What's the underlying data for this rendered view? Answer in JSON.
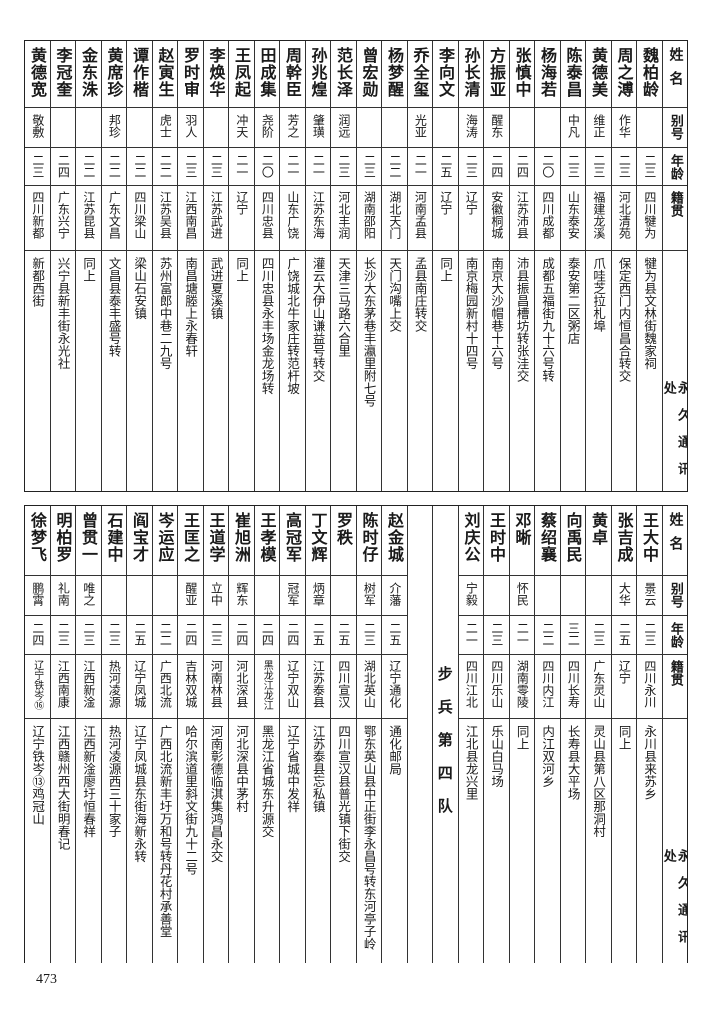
{
  "headers": {
    "name": "姓名",
    "alias": "别号",
    "age": "年龄",
    "origin": "籍贯",
    "address": "永久通讯处"
  },
  "top_table": [
    {
      "name": "魏柏龄",
      "alias": "",
      "age": "二三",
      "origin": "四川犍为",
      "address": "犍为县文林街魏家祠"
    },
    {
      "name": "周之溥",
      "alias": "作华",
      "age": "二三",
      "origin": "河北清苑",
      "address": "保定西门内恒昌合转交"
    },
    {
      "name": "黄德美",
      "alias": "维正",
      "age": "二三",
      "origin": "福建龙溪",
      "address": "爪哇芝拉札埠"
    },
    {
      "name": "陈泰昌",
      "alias": "中凡",
      "age": "二三",
      "origin": "山东泰安",
      "address": "泰安第二区粥店"
    },
    {
      "name": "杨海若",
      "alias": "",
      "age": "二〇",
      "origin": "四川成都",
      "address": "成都五福街九十六号转"
    },
    {
      "name": "张慎中",
      "alias": "",
      "age": "二四",
      "origin": "江苏沛县",
      "address": "沛县振昌槽坊转张洼交"
    },
    {
      "name": "方振亚",
      "alias": "醒东",
      "age": "二四",
      "origin": "安徽桐城",
      "address": "南京大沙帽巷十六号"
    },
    {
      "name": "孙长清",
      "alias": "海涛",
      "age": "二三",
      "origin": "辽宁",
      "address": "南京梅园新村十四号"
    },
    {
      "name": "李向文",
      "alias": "",
      "age": "二五",
      "origin": "辽宁",
      "address": "同上"
    },
    {
      "name": "乔全玺",
      "alias": "光亚",
      "age": "二一",
      "origin": "河南孟县",
      "address": "孟县南庄转交"
    },
    {
      "name": "杨梦醒",
      "alias": "",
      "age": "二二",
      "origin": "湖北天门",
      "address": "天门沟嘴上交"
    },
    {
      "name": "曾宏勋",
      "alias": "",
      "age": "二三",
      "origin": "湖南邵阳",
      "address": "长沙大东茅巷丰瀛里附七号"
    },
    {
      "name": "范长泽",
      "alias": "润远",
      "age": "二三",
      "origin": "河北丰润",
      "address": "天津三马路六合里"
    },
    {
      "name": "孙兆煌",
      "alias": "肇璜",
      "age": "二一",
      "origin": "江苏东海",
      "address": "灌云大伊山谦益号转交"
    },
    {
      "name": "周幹臣",
      "alias": "芳之",
      "age": "二一",
      "origin": "山东广饶",
      "address": "广饶城北牛家庄转范杆坡"
    },
    {
      "name": "田成集",
      "alias": "尧阶",
      "age": "二〇",
      "origin": "四川忠县",
      "address": "四川忠县永丰场金龙场转"
    },
    {
      "name": "王凤起",
      "alias": "冲天",
      "age": "二一",
      "origin": "辽宁",
      "address": "同上"
    },
    {
      "name": "李焕华",
      "alias": "",
      "age": "二三",
      "origin": "江苏武进",
      "address": "武进夏溪镇"
    },
    {
      "name": "罗时审",
      "alias": "羽人",
      "age": "二三",
      "origin": "江西南昌",
      "address": "南昌塘塍上永春轩"
    },
    {
      "name": "赵寅生",
      "alias": "虎士",
      "age": "二二",
      "origin": "江苏吴县",
      "address": "苏州富郎中巷二九号"
    },
    {
      "name": "谭作楷",
      "alias": "",
      "age": "二二",
      "origin": "四川梁山",
      "address": "梁山石安镇"
    },
    {
      "name": "黄席珍",
      "alias": "邦珍",
      "age": "二二",
      "origin": "广东文昌",
      "address": "文昌县泰丰盛号转"
    },
    {
      "name": "金东洙",
      "alias": "",
      "age": "二二",
      "origin": "江苏昆县",
      "address": "同上"
    },
    {
      "name": "李冠奎",
      "alias": "",
      "age": "二四",
      "origin": "广东兴宁",
      "address": "兴宁县新丰街永光社"
    },
    {
      "name": "黄德宽",
      "alias": "敬敷",
      "age": "二三",
      "origin": "四川新都",
      "address": "新都西街"
    }
  ],
  "bottom_table": {
    "right_group": [
      {
        "name": "王大中",
        "alias": "景云",
        "age": "二三",
        "origin": "四川永川",
        "address": "永川县来苏乡"
      },
      {
        "name": "张吉成",
        "alias": "大华",
        "age": "二五",
        "origin": "辽宁",
        "address": "同上"
      },
      {
        "name": "黄卓",
        "alias": "",
        "age": "二三",
        "origin": "广东灵山",
        "address": "灵山县第八区那洞村"
      },
      {
        "name": "向禹民",
        "alias": "",
        "age": "三二",
        "origin": "四川长寿",
        "address": "长寿县大平场"
      },
      {
        "name": "蔡绍襄",
        "alias": "",
        "age": "二二",
        "origin": "四川内江",
        "address": "内江双河乡"
      },
      {
        "name": "邓晰",
        "alias": "怀民",
        "age": "二一",
        "origin": "湖南零陵",
        "address": "同上"
      },
      {
        "name": "王时中",
        "alias": "",
        "age": "二三",
        "origin": "四川乐山",
        "address": "乐山白马场"
      },
      {
        "name": "刘庆公",
        "alias": "宁毅",
        "age": "二一",
        "origin": "四川江北",
        "address": "江北县龙兴里"
      }
    ],
    "section_label": "步兵第四队",
    "left_group": [
      {
        "name": "赵金城",
        "alias": "介藩",
        "age": "二五",
        "origin": "辽宁通化",
        "address": "通化邮局"
      },
      {
        "name": "陈时仔",
        "alias": "树军",
        "age": "二三",
        "origin": "湖北英山",
        "address": "鄂东英山县中正街李永昌号转东河亭子岭"
      },
      {
        "name": "罗秩",
        "alias": "",
        "age": "二五",
        "origin": "四川宣汉",
        "address": "四川宣汉县普光镇下街交"
      },
      {
        "name": "丁文辉",
        "alias": "炳章",
        "age": "二五",
        "origin": "江苏泰县",
        "address": "江苏泰县忘私镇"
      },
      {
        "name": "高冠军",
        "alias": "冠军",
        "age": "二四",
        "origin": "辽宁双山",
        "address": "辽宁省城中发祥"
      },
      {
        "name": "王孝模",
        "alias": "",
        "age": "二四",
        "origin": "黑龙江龙江",
        "address": "黑龙江省城东升源交"
      },
      {
        "name": "崔旭洲",
        "alias": "辉东",
        "age": "二四",
        "origin": "河北深县",
        "address": "河北深县中茅村"
      },
      {
        "name": "王道学",
        "alias": "立中",
        "age": "二三",
        "origin": "河南林县",
        "address": "河南彰德临淇集鸿昌永交"
      },
      {
        "name": "王匡之",
        "alias": "醒亚",
        "age": "二四",
        "origin": "吉林双城",
        "address": "哈尔滨道里斜文街九十二号"
      },
      {
        "name": "岑运应",
        "alias": "",
        "age": "二二",
        "origin": "广西北流",
        "address": "广西北流新丰圩万和号转丹花村承善堂"
      },
      {
        "name": "阎宝才",
        "alias": "",
        "age": "二五",
        "origin": "辽宁凤城",
        "address": "辽宁凤城县东街海新永转"
      },
      {
        "name": "石建中",
        "alias": "",
        "age": "二三",
        "origin": "热河凌源",
        "address": "热河凌源西三十家子"
      },
      {
        "name": "曾贯一",
        "alias": "唯之",
        "age": "二三",
        "origin": "江西新淦",
        "address": "江西新淦廖圩恒春祥"
      },
      {
        "name": "明柏罗",
        "alias": "礼南",
        "age": "二三",
        "origin": "江西南康",
        "address": "江西赣州西大街明春记"
      },
      {
        "name": "徐梦飞",
        "alias": "鹏霄",
        "age": "二四",
        "origin": "辽宁铁岑⑯",
        "address": "辽宁铁岑⑬鸡冠山"
      }
    ]
  },
  "page_number": "473"
}
